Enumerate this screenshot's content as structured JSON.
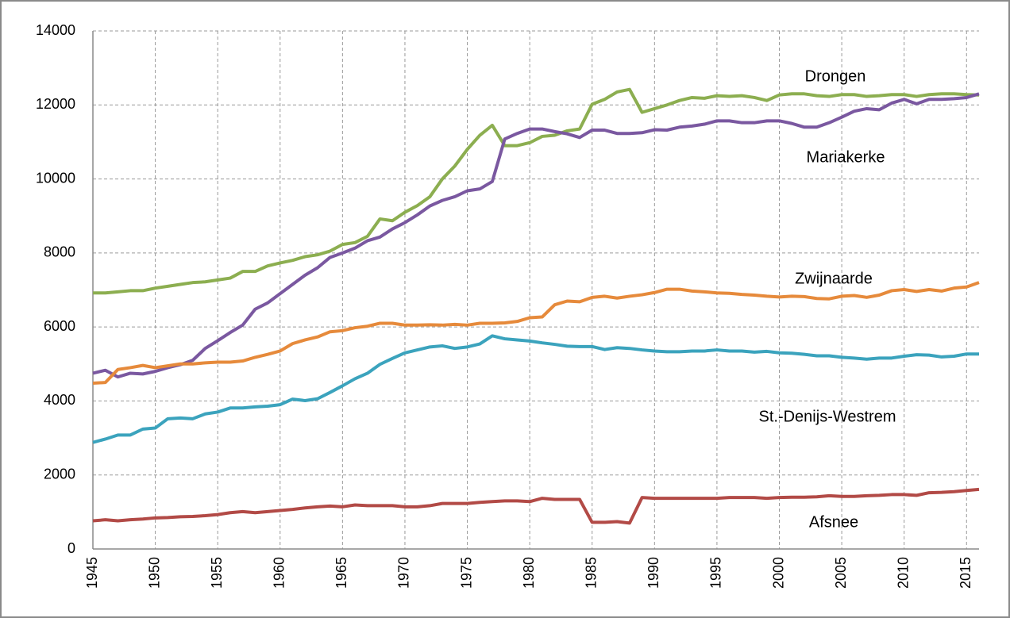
{
  "chart_data": {
    "type": "line",
    "x": [
      1945,
      1946,
      1947,
      1948,
      1949,
      1950,
      1951,
      1952,
      1953,
      1954,
      1955,
      1956,
      1957,
      1958,
      1959,
      1960,
      1961,
      1962,
      1963,
      1964,
      1965,
      1966,
      1967,
      1968,
      1969,
      1970,
      1971,
      1972,
      1973,
      1974,
      1975,
      1976,
      1977,
      1978,
      1979,
      1980,
      1981,
      1982,
      1983,
      1984,
      1985,
      1986,
      1987,
      1988,
      1989,
      1990,
      1991,
      1992,
      1993,
      1994,
      1995,
      1996,
      1997,
      1998,
      1999,
      2000,
      2001,
      2002,
      2003,
      2004,
      2005,
      2006,
      2007,
      2008,
      2009,
      2010,
      2011,
      2012,
      2013,
      2014,
      2015,
      2016
    ],
    "xlim": [
      1945,
      2016
    ],
    "xticks": [
      1945,
      1950,
      1955,
      1960,
      1965,
      1970,
      1975,
      1980,
      1985,
      1990,
      1995,
      2000,
      2005,
      2010,
      2015
    ],
    "ylim": [
      0,
      14000
    ],
    "yticks": [
      0,
      2000,
      4000,
      6000,
      8000,
      10000,
      12000,
      14000
    ],
    "grid": true,
    "series": [
      {
        "name": "Drongen",
        "color": "#8cae50",
        "values": [
          6920,
          6920,
          6950,
          6980,
          6980,
          7050,
          7100,
          7150,
          7200,
          7220,
          7270,
          7320,
          7500,
          7500,
          7650,
          7730,
          7800,
          7900,
          7950,
          8050,
          8230,
          8280,
          8450,
          8920,
          8870,
          9100,
          9280,
          9520,
          10000,
          10350,
          10800,
          11180,
          11450,
          10900,
          10900,
          10980,
          11150,
          11180,
          11300,
          11350,
          12020,
          12150,
          12350,
          12420,
          11800,
          11900,
          12000,
          12120,
          12200,
          12180,
          12250,
          12230,
          12250,
          12200,
          12120,
          12270,
          12300,
          12300,
          12250,
          12230,
          12280,
          12280,
          12230,
          12250,
          12280,
          12280,
          12230,
          12280,
          12300,
          12300,
          12280,
          12270
        ]
      },
      {
        "name": "Mariakerke",
        "color": "#7a58a0",
        "values": [
          4750,
          4830,
          4650,
          4750,
          4730,
          4800,
          4900,
          4980,
          5100,
          5420,
          5630,
          5850,
          6050,
          6480,
          6650,
          6900,
          7150,
          7400,
          7600,
          7880,
          8000,
          8130,
          8330,
          8430,
          8650,
          8820,
          9030,
          9270,
          9420,
          9520,
          9680,
          9730,
          9930,
          11080,
          11230,
          11350,
          11350,
          11280,
          11220,
          11120,
          11320,
          11320,
          11230,
          11230,
          11250,
          11330,
          11320,
          11400,
          11430,
          11480,
          11570,
          11570,
          11520,
          11520,
          11570,
          11570,
          11500,
          11400,
          11400,
          11520,
          11670,
          11830,
          11900,
          11870,
          12050,
          12150,
          12030,
          12150,
          12150,
          12170,
          12200,
          12300
        ]
      },
      {
        "name": "Zwijnaarde",
        "color": "#e68a3b",
        "values": [
          4480,
          4500,
          4850,
          4900,
          4960,
          4900,
          4950,
          5000,
          5000,
          5030,
          5050,
          5050,
          5080,
          5180,
          5260,
          5350,
          5550,
          5650,
          5730,
          5870,
          5900,
          5980,
          6020,
          6100,
          6100,
          6050,
          6050,
          6060,
          6050,
          6070,
          6050,
          6100,
          6100,
          6110,
          6150,
          6250,
          6270,
          6600,
          6700,
          6680,
          6800,
          6830,
          6780,
          6830,
          6870,
          6930,
          7020,
          7020,
          6970,
          6950,
          6920,
          6910,
          6880,
          6860,
          6830,
          6810,
          6830,
          6820,
          6770,
          6760,
          6830,
          6850,
          6800,
          6860,
          6980,
          7010,
          6960,
          7010,
          6970,
          7050,
          7080,
          7200
        ]
      },
      {
        "name": "St.-Denijs-Westrem",
        "color": "#3ba3bd",
        "values": [
          2880,
          2970,
          3080,
          3080,
          3240,
          3270,
          3520,
          3540,
          3520,
          3650,
          3700,
          3810,
          3810,
          3840,
          3860,
          3900,
          4050,
          4010,
          4060,
          4230,
          4410,
          4600,
          4750,
          4990,
          5150,
          5300,
          5380,
          5460,
          5490,
          5420,
          5460,
          5540,
          5760,
          5680,
          5650,
          5620,
          5570,
          5530,
          5480,
          5470,
          5470,
          5390,
          5440,
          5420,
          5380,
          5350,
          5330,
          5330,
          5350,
          5350,
          5380,
          5350,
          5350,
          5320,
          5340,
          5300,
          5290,
          5260,
          5220,
          5220,
          5180,
          5160,
          5130,
          5160,
          5160,
          5210,
          5250,
          5240,
          5190,
          5210,
          5270,
          5270
        ]
      },
      {
        "name": "Afsnee",
        "color": "#b24a46",
        "values": [
          760,
          790,
          760,
          790,
          810,
          840,
          850,
          870,
          880,
          900,
          930,
          980,
          1010,
          980,
          1010,
          1040,
          1070,
          1110,
          1140,
          1160,
          1140,
          1190,
          1170,
          1170,
          1170,
          1140,
          1140,
          1170,
          1230,
          1230,
          1230,
          1260,
          1280,
          1300,
          1300,
          1280,
          1370,
          1340,
          1340,
          1340,
          720,
          720,
          740,
          700,
          1390,
          1370,
          1370,
          1370,
          1370,
          1370,
          1370,
          1390,
          1390,
          1390,
          1370,
          1390,
          1400,
          1400,
          1410,
          1440,
          1420,
          1420,
          1440,
          1450,
          1470,
          1470,
          1450,
          1520,
          1530,
          1550,
          1580,
          1610
        ]
      }
    ]
  }
}
